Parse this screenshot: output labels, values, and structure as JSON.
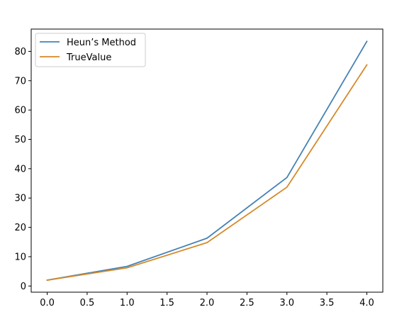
{
  "chart_data": {
    "type": "line",
    "title": "",
    "xlabel": "",
    "ylabel": "",
    "x": [
      0.0,
      1.0,
      2.0,
      3.0,
      4.0
    ],
    "series": [
      {
        "name": "Heun’s Method",
        "color": "#4682b4",
        "values": [
          2.0,
          6.7,
          16.3,
          37.0,
          83.4
        ]
      },
      {
        "name": "TrueValue",
        "color": "#d58a2b",
        "values": [
          2.0,
          6.2,
          14.8,
          33.7,
          75.4
        ]
      }
    ],
    "xlim": [
      -0.2,
      4.2
    ],
    "ylim": [
      -2.1,
      87.6
    ],
    "xticks": [
      0.0,
      0.5,
      1.0,
      1.5,
      2.0,
      2.5,
      3.0,
      3.5,
      4.0
    ],
    "xtick_labels": [
      "0.0",
      "0.5",
      "1.0",
      "1.5",
      "2.0",
      "2.5",
      "3.0",
      "3.5",
      "4.0"
    ],
    "yticks": [
      0,
      10,
      20,
      30,
      40,
      50,
      60,
      70,
      80
    ],
    "ytick_labels": [
      "0",
      "10",
      "20",
      "30",
      "40",
      "50",
      "60",
      "70",
      "80"
    ],
    "grid": false,
    "legend_position": "top-left"
  }
}
